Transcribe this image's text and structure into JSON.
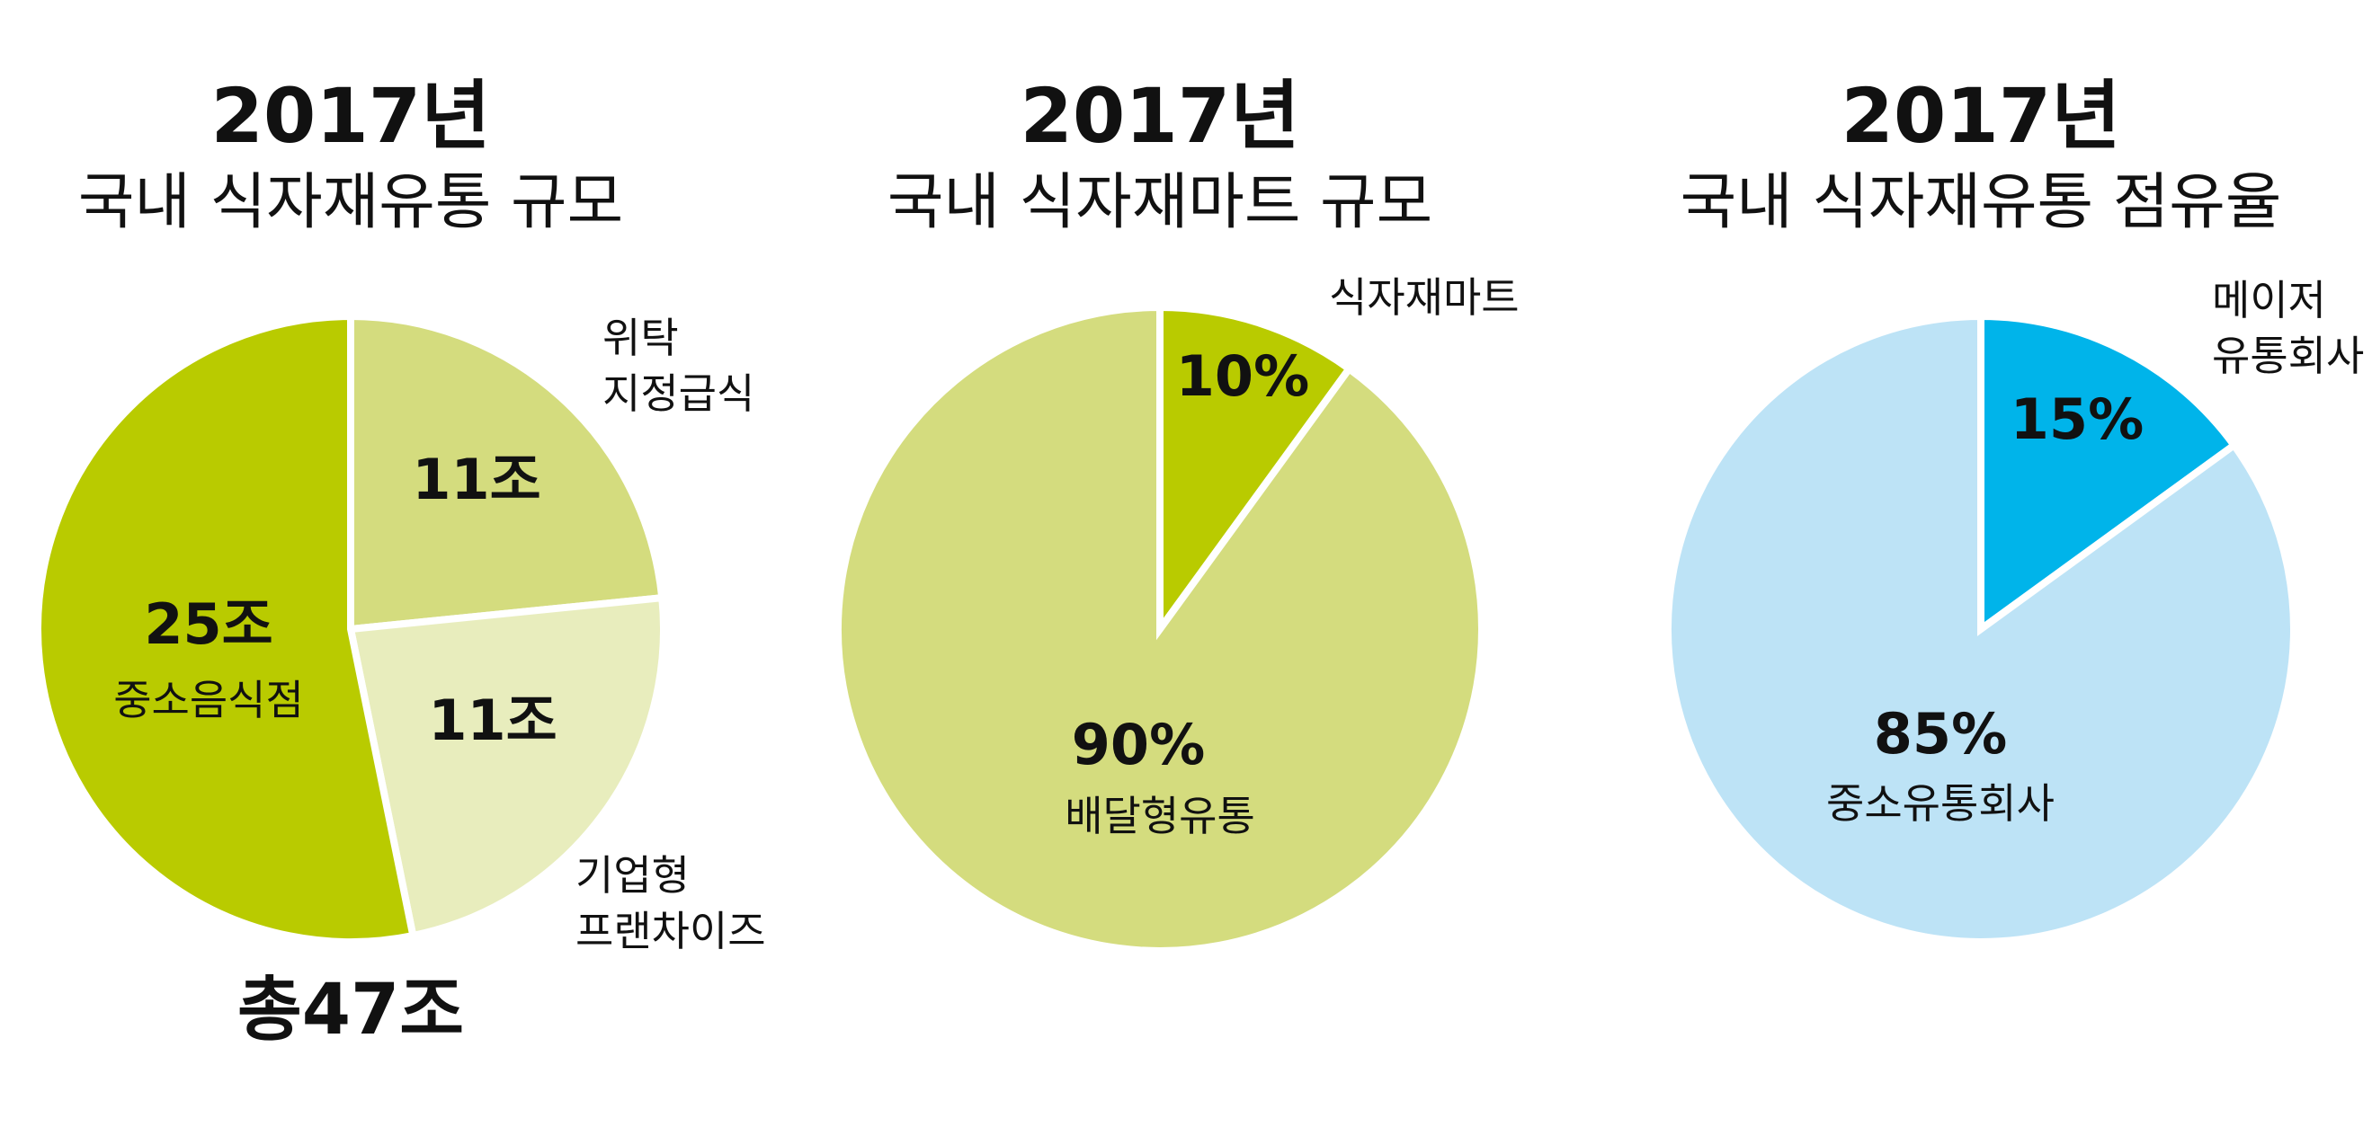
{
  "chart_data": [
    {
      "type": "pie",
      "title": "2017년",
      "subtitle": "국내 식자재유통 규모",
      "unit": "조",
      "slices": [
        {
          "name": "위탁 지정급식",
          "value_label": "11조",
          "value": 11,
          "color": "#d4dc7e",
          "outer_label": [
            "위탁",
            "지정급식"
          ]
        },
        {
          "name": "기업형 프랜차이즈",
          "value_label": "11조",
          "value": 11,
          "color": "#e8edbd",
          "outer_label": [
            "기업형",
            "프랜차이즈"
          ]
        },
        {
          "name": "중소음식점",
          "value_label": "25조",
          "value": 25,
          "color": "#b9cb00",
          "inner_sublabel": "중소음식점"
        }
      ],
      "total_label": "총47조"
    },
    {
      "type": "pie",
      "title": "2017년",
      "subtitle": "국내 식자재마트 규모",
      "unit": "%",
      "slices": [
        {
          "name": "식자재마트",
          "value_label": "10%",
          "value": 10,
          "color": "#b9cb00",
          "outer_label": [
            "식자재마트"
          ]
        },
        {
          "name": "배달형유통",
          "value_label": "90%",
          "value": 90,
          "color": "#d4dc7e",
          "inner_sublabel": "배달형유통"
        }
      ]
    },
    {
      "type": "pie",
      "title": "2017년",
      "subtitle": "국내 식자재유통 점유율",
      "unit": "%",
      "slices": [
        {
          "name": "메이저 유통회사",
          "value_label": "15%",
          "value": 15,
          "color": "#00b4ea",
          "outer_label": [
            "메이저",
            "유통회사"
          ]
        },
        {
          "name": "중소유통회사",
          "value_label": "85%",
          "value": 85,
          "color": "#bde3f6",
          "inner_sublabel": "중소유통회사"
        }
      ]
    }
  ]
}
